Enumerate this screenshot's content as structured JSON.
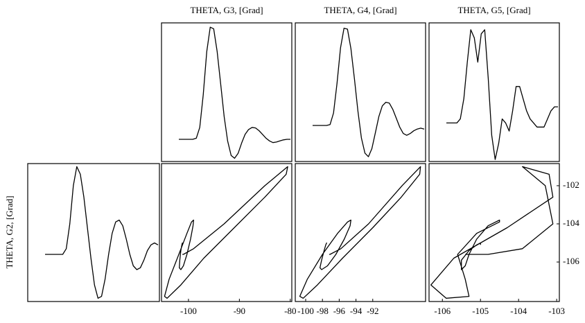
{
  "chart_data": {
    "type": "scatter-matrix",
    "color": "#000000",
    "series": [
      {
        "name": "THETA, G2, [Grad]",
        "ylim": [
          -108.07,
          -100.84
        ],
        "yticks": [
          -102,
          -104,
          -106
        ],
        "values": [
          -105.6,
          -105.6,
          -105.6,
          -105.6,
          -105.6,
          -105.6,
          -105.3,
          -104.0,
          -102.0,
          -101.0,
          -101.4,
          -102.6,
          -104.2,
          -105.8,
          -107.2,
          -107.9,
          -107.8,
          -106.9,
          -105.6,
          -104.5,
          -103.9,
          -103.8,
          -104.1,
          -104.8,
          -105.6,
          -106.2,
          -106.4,
          -106.3,
          -105.9,
          -105.4,
          -105.1,
          -105.0,
          -105.1
        ]
      },
      {
        "name": "THETA, G3, [Grad]",
        "xlim": [
          -105.3,
          -79.7
        ],
        "xticks": [
          -100,
          -90,
          -80
        ],
        "values": [
          -101.2,
          -101.2,
          -101.2,
          -101.2,
          -101.2,
          -101.0,
          -99.0,
          -93.0,
          -85.0,
          -80.5,
          -80.8,
          -85.0,
          -91.0,
          -97.0,
          -101.5,
          -104.2,
          -104.7,
          -103.8,
          -101.9,
          -100.3,
          -99.4,
          -99.0,
          -99.1,
          -99.6,
          -100.3,
          -101.0,
          -101.5,
          -101.8,
          -101.7,
          -101.5,
          -101.3,
          -101.2,
          -101.2
        ]
      },
      {
        "name": "THETA, G4, [Grad]",
        "xlim": [
          -101.24,
          -85.7
        ],
        "xticks": [
          -100,
          -98,
          -96,
          -94,
          -92
        ],
        "values": [
          -97.2,
          -97.2,
          -97.2,
          -97.2,
          -97.2,
          -97.1,
          -95.8,
          -92.5,
          -88.5,
          -86.3,
          -86.4,
          -88.6,
          -92.0,
          -95.6,
          -98.6,
          -100.3,
          -100.7,
          -99.8,
          -98.0,
          -96.2,
          -95.0,
          -94.6,
          -94.7,
          -95.4,
          -96.4,
          -97.4,
          -98.1,
          -98.3,
          -98.1,
          -97.8,
          -97.6,
          -97.5,
          -97.6
        ]
      },
      {
        "name": "THETA, G5, [Grad]",
        "xlim": [
          -106.35,
          -102.93
        ],
        "xticks": [
          -106,
          -105,
          -104,
          -103
        ],
        "values": [
          -105.4,
          -105.4,
          -105.4,
          -105.4,
          -105.3,
          -104.8,
          -103.9,
          -103.1,
          -103.3,
          -103.9,
          -103.2,
          -103.1,
          -104.3,
          -105.7,
          -106.3,
          -105.9,
          -105.3,
          -105.4,
          -105.6,
          -105.1,
          -104.5,
          -104.5,
          -104.8,
          -105.1,
          -105.3,
          -105.4,
          -105.5,
          -105.5,
          -105.5,
          -105.3,
          -105.1,
          -105.0,
          -105.0
        ]
      }
    ]
  }
}
